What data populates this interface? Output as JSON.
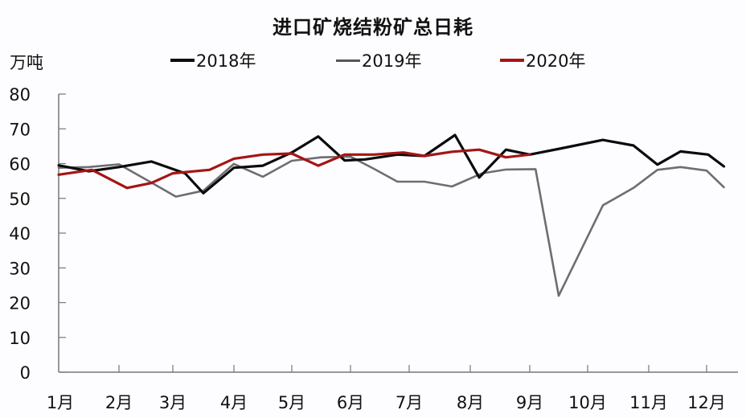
{
  "title": "进口矿烧结粉矿总日耗",
  "unit_label": "万吨",
  "legend": [
    {
      "label": "2018年",
      "color": "#0b0b0b"
    },
    {
      "label": "2019年",
      "color": "#6e6e72"
    },
    {
      "label": "2020年",
      "color": "#a31515"
    }
  ],
  "chart_data": {
    "type": "line",
    "title": "进口矿烧结粉矿总日耗",
    "xlabel": "",
    "ylabel": "万吨",
    "ylim": [
      0,
      80
    ],
    "yticks": [
      0,
      10,
      20,
      30,
      40,
      50,
      60,
      70,
      80
    ],
    "categories": [
      "1月",
      "2月",
      "3月",
      "4月",
      "5月",
      "6月",
      "7月",
      "8月",
      "9月",
      "10月",
      "11月",
      "12月"
    ],
    "grid": false,
    "legend_position": "top",
    "series": [
      {
        "name": "2018年",
        "color": "#0b0b0b",
        "x": [
          1.0,
          1.5,
          2.0,
          2.6,
          3.2,
          3.5,
          4.0,
          4.5,
          5.0,
          5.45,
          5.9,
          6.25,
          6.8,
          7.25,
          7.75,
          8.15,
          8.6,
          9.0,
          9.55,
          10.25,
          10.75,
          11.15,
          11.55,
          12.05,
          12.55
        ],
        "values": [
          59.5,
          57.8,
          59.0,
          60.6,
          57.2,
          51.5,
          58.8,
          59.4,
          63.2,
          67.8,
          60.9,
          61.2,
          62.6,
          62.2,
          68.2,
          56.0,
          64.0,
          62.6,
          64.4,
          66.8,
          65.2,
          59.7,
          63.5,
          62.6,
          59.2
        ]
      },
      {
        "name": "2019年",
        "color": "#6e6e72",
        "x": [
          1.0,
          1.5,
          2.0,
          2.55,
          3.05,
          3.5,
          4.0,
          4.5,
          5.0,
          5.5,
          6.0,
          6.4,
          6.8,
          7.25,
          7.7,
          8.2,
          8.6,
          9.1,
          9.5,
          10.25,
          10.75,
          11.15,
          11.55,
          12.0,
          12.55
        ],
        "values": [
          58.8,
          59.0,
          59.8,
          55.0,
          50.5,
          52.2,
          59.9,
          56.2,
          60.8,
          61.8,
          62.0,
          58.5,
          54.8,
          54.8,
          53.4,
          57.2,
          58.3,
          58.4,
          22.0,
          48.0,
          53.0,
          58.2,
          59.0,
          58.0,
          53.2
        ]
      },
      {
        "name": "2020年",
        "color": "#a31515",
        "x": [
          1.0,
          1.55,
          2.15,
          2.6,
          3.0,
          3.6,
          4.0,
          4.5,
          5.0,
          5.45,
          5.9,
          6.4,
          6.9,
          7.25,
          7.7,
          8.15,
          8.6,
          9.0
        ],
        "values": [
          56.8,
          58.2,
          53.0,
          54.4,
          57.2,
          58.2,
          61.4,
          62.6,
          62.9,
          59.4,
          62.6,
          62.6,
          63.2,
          62.2,
          63.4,
          64.0,
          61.8,
          62.6
        ]
      }
    ]
  }
}
